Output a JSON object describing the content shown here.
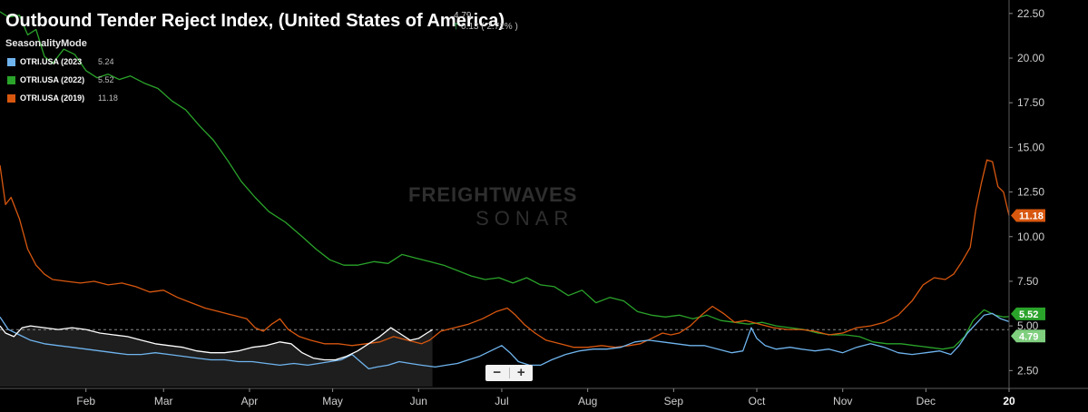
{
  "header": {
    "title": "Outbound  Tender Reject Index, (United States of America)",
    "mode": "SeasonalityMode",
    "last_value": "4.79",
    "change": "0.13 ( 2.71% )"
  },
  "legend": [
    {
      "name": "OTRI.USA (2023",
      "value": "5.24",
      "color": "#6fb4ee"
    },
    {
      "name": "OTRI.USA (2022)",
      "value": "5.52",
      "color": "#2aa32a"
    },
    {
      "name": "OTRI.USA (2019)",
      "value": "11.18",
      "color": "#d8570f"
    }
  ],
  "watermark": {
    "top": "FREIGHTWAVES",
    "bottom": "SONAR"
  },
  "zoom": {
    "minus": "−",
    "plus": "+"
  },
  "chart_data": {
    "type": "line",
    "x_unit": "day of year",
    "x_ticks": [
      {
        "label": "Feb",
        "x": 32
      },
      {
        "label": "Mar",
        "x": 60
      },
      {
        "label": "Apr",
        "x": 91
      },
      {
        "label": "May",
        "x": 121
      },
      {
        "label": "Jun",
        "x": 152
      },
      {
        "label": "Jul",
        "x": 182
      },
      {
        "label": "Aug",
        "x": 213
      },
      {
        "label": "Sep",
        "x": 244
      },
      {
        "label": "Oct",
        "x": 274
      },
      {
        "label": "Nov",
        "x": 305
      },
      {
        "label": "Dec",
        "x": 335
      },
      {
        "label": "20",
        "x": 365
      }
    ],
    "y_ticks": [
      2.5,
      5.0,
      7.5,
      10.0,
      12.5,
      15.0,
      17.5,
      20.0,
      22.5
    ],
    "xlim": [
      1,
      365
    ],
    "ylim": [
      1.5,
      23.0
    ],
    "reference_level": 4.79,
    "series": [
      {
        "name": "OTRI.USA (2022)",
        "color": "#2aa32a",
        "points": [
          [
            1,
            22.6
          ],
          [
            4,
            22.3
          ],
          [
            8,
            22.4
          ],
          [
            11,
            21.3
          ],
          [
            14,
            21.6
          ],
          [
            17,
            20.1
          ],
          [
            20,
            19.7
          ],
          [
            24,
            20.5
          ],
          [
            28,
            20.2
          ],
          [
            32,
            19.3
          ],
          [
            36,
            18.9
          ],
          [
            40,
            19.1
          ],
          [
            44,
            18.8
          ],
          [
            48,
            19.0
          ],
          [
            53,
            18.6
          ],
          [
            58,
            18.3
          ],
          [
            63,
            17.6
          ],
          [
            68,
            17.1
          ],
          [
            73,
            16.2
          ],
          [
            78,
            15.4
          ],
          [
            83,
            14.3
          ],
          [
            88,
            13.1
          ],
          [
            93,
            12.2
          ],
          [
            98,
            11.4
          ],
          [
            104,
            10.8
          ],
          [
            110,
            10.0
          ],
          [
            115,
            9.3
          ],
          [
            120,
            8.7
          ],
          [
            125,
            8.4
          ],
          [
            130,
            8.4
          ],
          [
            136,
            8.6
          ],
          [
            141,
            8.5
          ],
          [
            146,
            9.0
          ],
          [
            151,
            8.8
          ],
          [
            156,
            8.6
          ],
          [
            161,
            8.4
          ],
          [
            166,
            8.1
          ],
          [
            171,
            7.8
          ],
          [
            176,
            7.6
          ],
          [
            181,
            7.7
          ],
          [
            186,
            7.4
          ],
          [
            191,
            7.7
          ],
          [
            196,
            7.3
          ],
          [
            201,
            7.2
          ],
          [
            206,
            6.7
          ],
          [
            211,
            7.0
          ],
          [
            216,
            6.3
          ],
          [
            221,
            6.6
          ],
          [
            226,
            6.4
          ],
          [
            231,
            5.8
          ],
          [
            236,
            5.6
          ],
          [
            241,
            5.5
          ],
          [
            246,
            5.6
          ],
          [
            251,
            5.4
          ],
          [
            256,
            5.6
          ],
          [
            261,
            5.3
          ],
          [
            266,
            5.2
          ],
          [
            271,
            5.1
          ],
          [
            276,
            5.2
          ],
          [
            281,
            5.0
          ],
          [
            286,
            4.9
          ],
          [
            291,
            4.8
          ],
          [
            296,
            4.6
          ],
          [
            301,
            4.5
          ],
          [
            306,
            4.5
          ],
          [
            311,
            4.4
          ],
          [
            316,
            4.1
          ],
          [
            321,
            4.0
          ],
          [
            326,
            4.0
          ],
          [
            331,
            3.9
          ],
          [
            336,
            3.8
          ],
          [
            341,
            3.7
          ],
          [
            345,
            3.8
          ],
          [
            349,
            4.4
          ],
          [
            352,
            5.3
          ],
          [
            356,
            5.9
          ],
          [
            360,
            5.6
          ],
          [
            363,
            5.5
          ],
          [
            365,
            5.52
          ]
        ]
      },
      {
        "name": "OTRI.USA (2019)",
        "color": "#d8570f",
        "points": [
          [
            1,
            14.0
          ],
          [
            3,
            11.8
          ],
          [
            5,
            12.2
          ],
          [
            8,
            11.0
          ],
          [
            11,
            9.3
          ],
          [
            14,
            8.4
          ],
          [
            17,
            7.9
          ],
          [
            20,
            7.6
          ],
          [
            25,
            7.5
          ],
          [
            30,
            7.4
          ],
          [
            35,
            7.5
          ],
          [
            40,
            7.3
          ],
          [
            45,
            7.4
          ],
          [
            50,
            7.2
          ],
          [
            55,
            6.9
          ],
          [
            60,
            7.0
          ],
          [
            65,
            6.6
          ],
          [
            70,
            6.3
          ],
          [
            75,
            6.0
          ],
          [
            80,
            5.8
          ],
          [
            85,
            5.6
          ],
          [
            90,
            5.4
          ],
          [
            93,
            4.9
          ],
          [
            96,
            4.7
          ],
          [
            99,
            5.1
          ],
          [
            102,
            5.4
          ],
          [
            105,
            4.8
          ],
          [
            109,
            4.4
          ],
          [
            113,
            4.2
          ],
          [
            118,
            4.0
          ],
          [
            123,
            4.0
          ],
          [
            128,
            3.9
          ],
          [
            133,
            4.0
          ],
          [
            138,
            4.1
          ],
          [
            143,
            4.4
          ],
          [
            148,
            4.2
          ],
          [
            153,
            4.0
          ],
          [
            156,
            4.2
          ],
          [
            160,
            4.7
          ],
          [
            165,
            4.9
          ],
          [
            170,
            5.1
          ],
          [
            175,
            5.4
          ],
          [
            180,
            5.8
          ],
          [
            184,
            6.0
          ],
          [
            187,
            5.6
          ],
          [
            190,
            5.1
          ],
          [
            194,
            4.6
          ],
          [
            198,
            4.2
          ],
          [
            203,
            4.0
          ],
          [
            208,
            3.8
          ],
          [
            213,
            3.8
          ],
          [
            218,
            3.9
          ],
          [
            223,
            3.8
          ],
          [
            228,
            3.9
          ],
          [
            232,
            4.0
          ],
          [
            236,
            4.3
          ],
          [
            240,
            4.6
          ],
          [
            243,
            4.5
          ],
          [
            246,
            4.6
          ],
          [
            250,
            5.0
          ],
          [
            254,
            5.6
          ],
          [
            258,
            6.1
          ],
          [
            262,
            5.7
          ],
          [
            266,
            5.2
          ],
          [
            270,
            5.3
          ],
          [
            275,
            5.1
          ],
          [
            280,
            4.9
          ],
          [
            285,
            4.8
          ],
          [
            290,
            4.8
          ],
          [
            295,
            4.7
          ],
          [
            300,
            4.5
          ],
          [
            305,
            4.6
          ],
          [
            310,
            4.9
          ],
          [
            315,
            5.0
          ],
          [
            320,
            5.2
          ],
          [
            325,
            5.6
          ],
          [
            330,
            6.4
          ],
          [
            334,
            7.3
          ],
          [
            338,
            7.7
          ],
          [
            342,
            7.6
          ],
          [
            345,
            7.9
          ],
          [
            348,
            8.6
          ],
          [
            351,
            9.4
          ],
          [
            353,
            11.5
          ],
          [
            355,
            13.0
          ],
          [
            357,
            14.3
          ],
          [
            359,
            14.2
          ],
          [
            361,
            12.8
          ],
          [
            363,
            12.5
          ],
          [
            365,
            11.18
          ]
        ]
      },
      {
        "name": "OTRI.USA (2023",
        "color": "#6fb4ee",
        "points": [
          [
            1,
            5.5
          ],
          [
            4,
            4.8
          ],
          [
            8,
            4.5
          ],
          [
            12,
            4.2
          ],
          [
            17,
            4.0
          ],
          [
            22,
            3.9
          ],
          [
            27,
            3.8
          ],
          [
            32,
            3.7
          ],
          [
            37,
            3.6
          ],
          [
            42,
            3.5
          ],
          [
            47,
            3.4
          ],
          [
            52,
            3.4
          ],
          [
            57,
            3.5
          ],
          [
            62,
            3.4
          ],
          [
            67,
            3.3
          ],
          [
            72,
            3.2
          ],
          [
            77,
            3.1
          ],
          [
            82,
            3.1
          ],
          [
            87,
            3.0
          ],
          [
            92,
            3.0
          ],
          [
            97,
            2.9
          ],
          [
            102,
            2.8
          ],
          [
            107,
            2.9
          ],
          [
            112,
            2.8
          ],
          [
            116,
            2.9
          ],
          [
            120,
            3.0
          ],
          [
            124,
            3.1
          ],
          [
            128,
            3.4
          ],
          [
            131,
            3.0
          ],
          [
            134,
            2.6
          ],
          [
            137,
            2.7
          ],
          [
            141,
            2.8
          ],
          [
            145,
            3.0
          ],
          [
            149,
            2.9
          ],
          [
            153,
            2.8
          ],
          [
            158,
            2.7
          ],
          [
            162,
            2.8
          ],
          [
            166,
            2.9
          ],
          [
            170,
            3.1
          ],
          [
            174,
            3.3
          ],
          [
            178,
            3.6
          ],
          [
            182,
            3.9
          ],
          [
            185,
            3.5
          ],
          [
            188,
            3.0
          ],
          [
            192,
            2.8
          ],
          [
            196,
            2.8
          ],
          [
            200,
            3.1
          ],
          [
            205,
            3.4
          ],
          [
            210,
            3.6
          ],
          [
            215,
            3.7
          ],
          [
            220,
            3.7
          ],
          [
            225,
            3.8
          ],
          [
            230,
            4.1
          ],
          [
            235,
            4.2
          ],
          [
            240,
            4.1
          ],
          [
            245,
            4.0
          ],
          [
            250,
            3.9
          ],
          [
            255,
            3.9
          ],
          [
            260,
            3.7
          ],
          [
            265,
            3.5
          ],
          [
            269,
            3.6
          ],
          [
            272,
            4.9
          ],
          [
            274,
            4.3
          ],
          [
            277,
            3.9
          ],
          [
            281,
            3.7
          ],
          [
            286,
            3.8
          ],
          [
            290,
            3.7
          ],
          [
            295,
            3.6
          ],
          [
            300,
            3.7
          ],
          [
            305,
            3.5
          ],
          [
            310,
            3.8
          ],
          [
            315,
            4.0
          ],
          [
            320,
            3.8
          ],
          [
            325,
            3.5
          ],
          [
            330,
            3.4
          ],
          [
            335,
            3.5
          ],
          [
            340,
            3.6
          ],
          [
            344,
            3.4
          ],
          [
            347,
            3.9
          ],
          [
            350,
            4.6
          ],
          [
            353,
            5.1
          ],
          [
            356,
            5.6
          ],
          [
            359,
            5.7
          ],
          [
            362,
            5.4
          ],
          [
            365,
            5.24
          ]
        ]
      },
      {
        "name": "",
        "color": "#ffffff",
        "points": [
          [
            1,
            5.0
          ],
          [
            3,
            4.6
          ],
          [
            6,
            4.4
          ],
          [
            9,
            4.9
          ],
          [
            12,
            5.0
          ],
          [
            17,
            4.9
          ],
          [
            22,
            4.8
          ],
          [
            27,
            4.9
          ],
          [
            32,
            4.8
          ],
          [
            37,
            4.6
          ],
          [
            42,
            4.5
          ],
          [
            47,
            4.4
          ],
          [
            52,
            4.2
          ],
          [
            57,
            4.0
          ],
          [
            62,
            3.9
          ],
          [
            67,
            3.8
          ],
          [
            72,
            3.6
          ],
          [
            77,
            3.5
          ],
          [
            82,
            3.5
          ],
          [
            87,
            3.6
          ],
          [
            92,
            3.8
          ],
          [
            97,
            3.9
          ],
          [
            102,
            4.1
          ],
          [
            106,
            4.0
          ],
          [
            110,
            3.5
          ],
          [
            114,
            3.2
          ],
          [
            118,
            3.1
          ],
          [
            122,
            3.1
          ],
          [
            126,
            3.3
          ],
          [
            130,
            3.6
          ],
          [
            134,
            4.0
          ],
          [
            138,
            4.4
          ],
          [
            142,
            4.9
          ],
          [
            146,
            4.5
          ],
          [
            149,
            4.2
          ],
          [
            152,
            4.3
          ],
          [
            155,
            4.6
          ],
          [
            157,
            4.79
          ]
        ]
      }
    ],
    "end_labels": [
      {
        "value": "11.18",
        "y": 11.18,
        "color": "#d8570f"
      },
      {
        "value": "5.52",
        "y": 5.52,
        "color": "#2aa32a"
      },
      {
        "value": "4.79",
        "y": 4.79,
        "color": "#7fcf7f"
      }
    ]
  }
}
